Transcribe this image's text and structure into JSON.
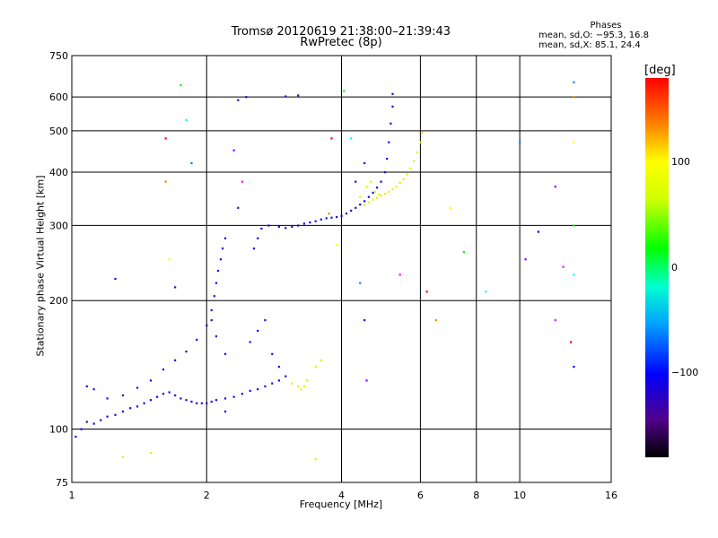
{
  "title_line1": "Tromsø 20120619 21:38:00–21:39:43",
  "title_line2": "RwPretec (8p)",
  "phases": {
    "title": "Phases",
    "o_line": "mean, sd,O: −95.3, 16.8",
    "x_line": "mean, sd,X:  85.1, 24.4"
  },
  "colorbar": {
    "unit": "[deg]",
    "ticks": [
      {
        "value": 100,
        "label": "100"
      },
      {
        "value": 0,
        "label": "0"
      },
      {
        "value": -100,
        "label": "−100"
      }
    ],
    "range": [
      -180,
      180
    ]
  },
  "chart_data": {
    "type": "scatter",
    "title": "Tromsø 20120619 21:38:00–21:39:43",
    "subtitle": "RwPretec (8p)",
    "xlabel": "Frequency [MHz]",
    "ylabel": "Stationary phase Virtual Height [km]",
    "x_scale": "log",
    "y_scale": "log",
    "xlim": [
      1,
      16
    ],
    "ylim": [
      75,
      750
    ],
    "x_ticks": [
      1,
      2,
      4,
      6,
      8,
      10,
      16
    ],
    "y_ticks": [
      75,
      100,
      200,
      300,
      400,
      500,
      600,
      750
    ],
    "grid": true,
    "series": [
      {
        "name": "O",
        "color_value": -100,
        "points": [
          [
            1.02,
            96
          ],
          [
            1.05,
            100
          ],
          [
            1.08,
            104
          ],
          [
            1.12,
            103
          ],
          [
            1.16,
            105
          ],
          [
            1.2,
            107
          ],
          [
            1.25,
            108
          ],
          [
            1.3,
            110
          ],
          [
            1.35,
            112
          ],
          [
            1.4,
            113
          ],
          [
            1.45,
            115
          ],
          [
            1.5,
            117
          ],
          [
            1.55,
            119
          ],
          [
            1.6,
            121
          ],
          [
            1.65,
            122
          ],
          [
            1.7,
            120
          ],
          [
            1.75,
            118
          ],
          [
            1.8,
            117
          ],
          [
            1.85,
            116
          ],
          [
            1.9,
            115
          ],
          [
            1.95,
            115
          ],
          [
            2.0,
            115
          ],
          [
            2.05,
            116
          ],
          [
            2.1,
            117
          ],
          [
            2.2,
            118
          ],
          [
            2.3,
            119
          ],
          [
            2.4,
            121
          ],
          [
            2.5,
            123
          ],
          [
            2.6,
            124
          ],
          [
            2.7,
            126
          ],
          [
            2.8,
            128
          ],
          [
            2.9,
            130
          ],
          [
            3.0,
            133
          ],
          [
            1.08,
            126
          ],
          [
            1.12,
            124
          ],
          [
            1.2,
            118
          ],
          [
            1.3,
            120
          ],
          [
            1.4,
            125
          ],
          [
            1.5,
            130
          ],
          [
            1.6,
            138
          ],
          [
            1.7,
            145
          ],
          [
            1.8,
            152
          ],
          [
            1.9,
            162
          ],
          [
            2.0,
            175
          ],
          [
            2.05,
            190
          ],
          [
            2.08,
            205
          ],
          [
            2.1,
            220
          ],
          [
            2.12,
            235
          ],
          [
            2.15,
            250
          ],
          [
            2.17,
            265
          ],
          [
            2.2,
            280
          ],
          [
            2.05,
            180
          ],
          [
            2.1,
            165
          ],
          [
            2.2,
            150
          ],
          [
            2.5,
            160
          ],
          [
            2.6,
            170
          ],
          [
            2.7,
            180
          ],
          [
            2.8,
            150
          ],
          [
            2.9,
            140
          ],
          [
            2.55,
            265
          ],
          [
            2.6,
            280
          ],
          [
            2.65,
            295
          ],
          [
            2.35,
            330
          ],
          [
            2.75,
            300
          ],
          [
            2.9,
            298
          ],
          [
            3.0,
            296
          ],
          [
            3.1,
            298
          ],
          [
            3.2,
            300
          ],
          [
            3.3,
            303
          ],
          [
            3.4,
            305
          ],
          [
            3.5,
            307
          ],
          [
            3.6,
            310
          ],
          [
            3.7,
            312
          ],
          [
            3.8,
            313
          ],
          [
            3.9,
            314
          ],
          [
            4.0,
            316
          ],
          [
            4.1,
            320
          ],
          [
            4.2,
            325
          ],
          [
            4.3,
            330
          ],
          [
            4.4,
            336
          ],
          [
            4.5,
            342
          ],
          [
            4.6,
            350
          ],
          [
            4.7,
            358
          ],
          [
            4.8,
            368
          ],
          [
            4.9,
            380
          ],
          [
            5.0,
            400
          ],
          [
            5.05,
            430
          ],
          [
            5.1,
            470
          ],
          [
            5.15,
            520
          ],
          [
            5.2,
            570
          ],
          [
            5.2,
            610
          ],
          [
            4.3,
            380
          ],
          [
            4.5,
            420
          ],
          [
            2.45,
            600
          ],
          [
            2.35,
            590
          ],
          [
            3.0,
            602
          ],
          [
            3.2,
            605
          ],
          [
            1.25,
            225
          ],
          [
            1.7,
            215
          ]
        ]
      },
      {
        "name": "X",
        "color_value": 100,
        "points": [
          [
            3.1,
            128
          ],
          [
            3.2,
            126
          ],
          [
            3.25,
            124
          ],
          [
            3.3,
            126
          ],
          [
            3.35,
            130
          ],
          [
            3.5,
            140
          ],
          [
            3.6,
            145
          ],
          [
            4.5,
            335
          ],
          [
            4.6,
            340
          ],
          [
            4.7,
            345
          ],
          [
            4.8,
            348
          ],
          [
            4.9,
            352
          ],
          [
            5.0,
            356
          ],
          [
            5.1,
            360
          ],
          [
            5.2,
            365
          ],
          [
            5.3,
            370
          ],
          [
            5.4,
            378
          ],
          [
            5.5,
            385
          ],
          [
            5.6,
            395
          ],
          [
            5.7,
            408
          ],
          [
            5.8,
            425
          ],
          [
            5.9,
            445
          ],
          [
            6.0,
            470
          ],
          [
            6.05,
            495
          ],
          [
            4.4,
            350
          ],
          [
            4.55,
            370
          ],
          [
            4.65,
            380
          ],
          [
            4.75,
            360
          ],
          [
            4.85,
            355
          ],
          [
            3.5,
            85
          ],
          [
            1.5,
            88
          ],
          [
            1.3,
            86
          ]
        ]
      },
      {
        "name": "Noise",
        "color_value": null,
        "points": [
          [
            1.62,
            480
          ],
          [
            1.62,
            380
          ],
          [
            1.65,
            250
          ],
          [
            1.75,
            640
          ],
          [
            1.8,
            530
          ],
          [
            1.85,
            420
          ],
          [
            2.2,
            110
          ],
          [
            2.3,
            450
          ],
          [
            2.4,
            380
          ],
          [
            3.8,
            480
          ],
          [
            3.75,
            320
          ],
          [
            3.9,
            270
          ],
          [
            4.05,
            620
          ],
          [
            4.2,
            480
          ],
          [
            4.4,
            220
          ],
          [
            4.5,
            180
          ],
          [
            4.55,
            130
          ],
          [
            5.4,
            230
          ],
          [
            6.2,
            210
          ],
          [
            6.5,
            180
          ],
          [
            7.0,
            330
          ],
          [
            7.5,
            260
          ],
          [
            8.4,
            210
          ],
          [
            10.0,
            470
          ],
          [
            11.0,
            290
          ],
          [
            12.0,
            370
          ],
          [
            12.5,
            240
          ],
          [
            13.0,
            160
          ],
          [
            13.2,
            600
          ],
          [
            13.2,
            470
          ],
          [
            13.2,
            300
          ],
          [
            13.2,
            230
          ],
          [
            13.2,
            650
          ],
          [
            13.2,
            140
          ],
          [
            10.3,
            250
          ],
          [
            12.0,
            180
          ]
        ]
      }
    ]
  }
}
